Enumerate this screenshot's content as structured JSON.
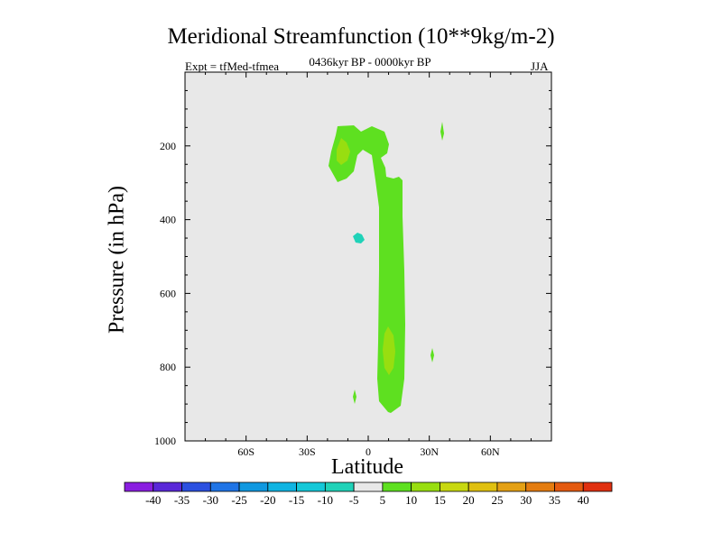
{
  "chart_data": {
    "type": "contour",
    "title": "Meridional Streamfunction (10**9kg/m-2)",
    "experiment": "Expt = tfMed-tfmea",
    "period": "0436kyr BP - 0000kyr BP",
    "season": "JJA",
    "xlabel": "Latitude",
    "ylabel": "Pressure (in hPa)",
    "x_ticks": [
      "60S",
      "30S",
      "0",
      "30N",
      "60N"
    ],
    "x_tick_values": [
      -60,
      -30,
      0,
      30,
      60
    ],
    "y_ticks": [
      "200",
      "400",
      "600",
      "800",
      "1000"
    ],
    "y_tick_values": [
      200,
      400,
      600,
      800,
      1000
    ],
    "xlim": [
      -90,
      90
    ],
    "ylim": [
      1000,
      0
    ],
    "background_color": "#e8e8e8",
    "colorbar": {
      "labels": [
        "-40",
        "-35",
        "-30",
        "-25",
        "-20",
        "-15",
        "-10",
        "-5",
        "5",
        "10",
        "15",
        "20",
        "25",
        "30",
        "35",
        "40"
      ],
      "colors": [
        "#8a1ee0",
        "#5a28d8",
        "#2b50e0",
        "#1f74e6",
        "#1098e0",
        "#10b4e2",
        "#14c8d8",
        "#20d2b8",
        "#e8e8e8",
        "#5ee020",
        "#98de10",
        "#c8d810",
        "#e0c010",
        "#e4a014",
        "#e47c10",
        "#e45a10",
        "#e03010"
      ]
    },
    "regions": [
      {
        "level": "5 to 10",
        "color": "#5ee020",
        "shape": "hook / long column",
        "lat_range": [
          -20,
          18
        ],
        "pressure_range": [
          140,
          930
        ]
      },
      {
        "level": "10 to 15",
        "color": "#98de10",
        "shape": "core",
        "lat_range": [
          -13,
          -7
        ],
        "pressure_range": [
          180,
          260
        ]
      },
      {
        "level": "10 to 15",
        "color": "#98de10",
        "shape": "core",
        "lat_range": [
          10,
          14
        ],
        "pressure_range": [
          700,
          820
        ]
      },
      {
        "level": "5 to 10",
        "color": "#5ee020",
        "shape": "sliver",
        "lat_range": [
          33,
          34
        ],
        "pressure_range": [
          130,
          180
        ]
      },
      {
        "level": "5 to 10",
        "color": "#5ee020",
        "shape": "sliver",
        "lat_range": [
          -5,
          -4
        ],
        "pressure_range": [
          860,
          900
        ]
      },
      {
        "level": "5 to 10",
        "color": "#5ee020",
        "shape": "sliver",
        "lat_range": [
          31,
          32
        ],
        "pressure_range": [
          760,
          800
        ]
      },
      {
        "level": "-10 to -5",
        "color": "#20d2b8",
        "shape": "blob",
        "lat_range": [
          -6,
          -2
        ],
        "pressure_range": [
          430,
          460
        ]
      }
    ]
  }
}
